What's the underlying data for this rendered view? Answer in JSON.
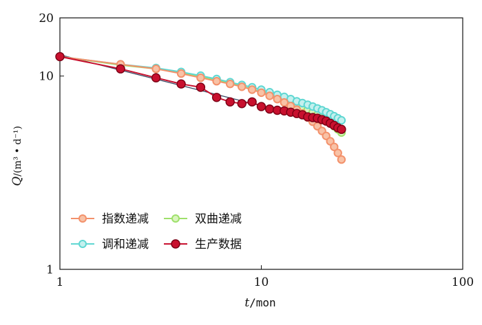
{
  "chart_data": {
    "type": "line",
    "xscale": "log",
    "yscale": "log",
    "xlim": [
      1,
      100
    ],
    "ylim": [
      1,
      20
    ],
    "xticks": [
      1,
      10,
      100
    ],
    "xtick_labels": [
      "1",
      "10",
      "100"
    ],
    "yticks": [
      1,
      10,
      20
    ],
    "ytick_labels": [
      "1",
      "10",
      "20"
    ],
    "xlabel": {
      "var": "t",
      "unit": "/mon"
    },
    "ylabel": {
      "var": "Q",
      "unit": "/(m³ • d⁻¹)"
    },
    "grid": false,
    "legend_position": "bottom-left",
    "series": [
      {
        "name": "指数递减",
        "color": "#f3916b",
        "x": [
          1,
          2,
          3,
          4,
          5,
          6,
          7,
          8,
          9,
          10,
          11,
          12,
          13,
          14,
          15,
          16,
          17,
          18,
          19,
          20,
          21,
          22,
          23,
          24,
          25
        ],
        "y": [
          12.6,
          11.5,
          10.9,
          10.3,
          9.8,
          9.4,
          9.1,
          8.8,
          8.5,
          8.2,
          7.9,
          7.6,
          7.3,
          7.0,
          6.7,
          6.4,
          6.1,
          5.8,
          5.5,
          5.2,
          4.9,
          4.6,
          4.3,
          4.0,
          3.7
        ]
      },
      {
        "name": "双曲递减",
        "color": "#9ee06a",
        "x": [
          1,
          2,
          3,
          4,
          5,
          6,
          7,
          8,
          9,
          10,
          11,
          12,
          13,
          14,
          15,
          16,
          17,
          18,
          19,
          20,
          21,
          22,
          23,
          24,
          25
        ],
        "y": [
          12.6,
          11.4,
          10.9,
          10.4,
          9.95,
          9.55,
          9.15,
          8.85,
          8.55,
          8.3,
          8.0,
          7.75,
          7.5,
          7.3,
          7.1,
          6.9,
          6.7,
          6.5,
          6.3,
          6.1,
          5.9,
          5.7,
          5.5,
          5.3,
          5.1
        ]
      },
      {
        "name": "调和递减",
        "color": "#5fd7d2",
        "x": [
          1,
          2,
          3,
          4,
          5,
          6,
          7,
          8,
          9,
          10,
          11,
          12,
          13,
          14,
          15,
          16,
          17,
          18,
          19,
          20,
          21,
          22,
          23,
          24,
          25
        ],
        "y": [
          12.6,
          11.5,
          11.0,
          10.5,
          10.05,
          9.65,
          9.3,
          9.0,
          8.75,
          8.5,
          8.25,
          8.0,
          7.8,
          7.6,
          7.4,
          7.25,
          7.1,
          6.95,
          6.8,
          6.65,
          6.5,
          6.35,
          6.2,
          6.05,
          5.9
        ]
      },
      {
        "name": "生产数据",
        "color": "#c8102e",
        "x": [
          1,
          2,
          3,
          4,
          5,
          6,
          7,
          8,
          9,
          10,
          11,
          12,
          13,
          14,
          15,
          16,
          17,
          18,
          19,
          20,
          21,
          22,
          23,
          24,
          25
        ],
        "y": [
          12.6,
          10.9,
          9.8,
          9.1,
          8.75,
          7.75,
          7.35,
          7.2,
          7.35,
          6.95,
          6.75,
          6.65,
          6.6,
          6.5,
          6.4,
          6.3,
          6.15,
          6.1,
          6.05,
          5.95,
          5.85,
          5.7,
          5.55,
          5.4,
          5.3
        ]
      }
    ]
  }
}
